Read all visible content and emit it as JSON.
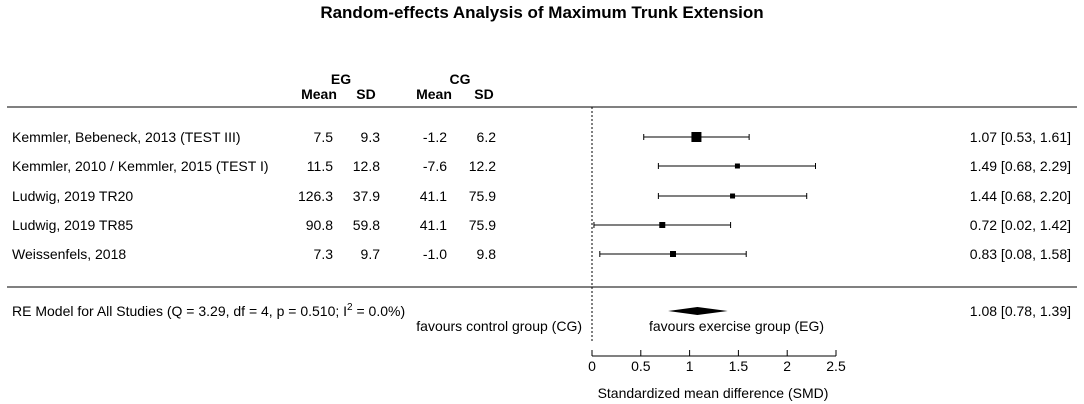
{
  "chart_data": {
    "type": "forest",
    "title": "Random-effects Analysis of Maximum Trunk Extension",
    "columns": {
      "eg_group": "EG",
      "cg_group": "CG",
      "eg_mean": "Mean",
      "eg_sd": "SD",
      "cg_mean": "Mean",
      "cg_sd": "SD"
    },
    "studies": [
      {
        "label": "Kemmler, Bebeneck, 2013 (TEST III)",
        "eg_mean": "7.5",
        "eg_sd": "9.3",
        "cg_mean": "-1.2",
        "cg_sd": "6.2",
        "smd": 1.07,
        "lo": 0.53,
        "hi": 1.61,
        "ci_text": "1.07 [0.53, 1.61]",
        "weight": "large"
      },
      {
        "label": "Kemmler, 2010 / Kemmler, 2015 (TEST I)",
        "eg_mean": "11.5",
        "eg_sd": "12.8",
        "cg_mean": "-7.6",
        "cg_sd": "12.2",
        "smd": 1.49,
        "lo": 0.68,
        "hi": 2.29,
        "ci_text": "1.49 [0.68, 2.29]",
        "weight": "small"
      },
      {
        "label": "Ludwig, 2019 TR20",
        "eg_mean": "126.3",
        "eg_sd": "37.9",
        "cg_mean": "41.1",
        "cg_sd": "75.9",
        "smd": 1.44,
        "lo": 0.68,
        "hi": 2.2,
        "ci_text": "1.44 [0.68, 2.20]",
        "weight": "small"
      },
      {
        "label": "Ludwig, 2019 TR85",
        "eg_mean": "90.8",
        "eg_sd": "59.8",
        "cg_mean": "41.1",
        "cg_sd": "75.9",
        "smd": 0.72,
        "lo": 0.02,
        "hi": 1.42,
        "ci_text": "0.72 [0.02, 1.42]",
        "weight": "medium"
      },
      {
        "label": "Weissenfels, 2018",
        "eg_mean": "7.3",
        "eg_sd": "9.7",
        "cg_mean": "-1.0",
        "cg_sd": "9.8",
        "smd": 0.83,
        "lo": 0.08,
        "hi": 1.58,
        "ci_text": "0.83 [0.08, 1.58]",
        "weight": "medium"
      }
    ],
    "summary": {
      "label_prefix": "RE Model for All Studies (Q = 3.29, df = 4, p = 0.510; I",
      "label_sup": "2",
      "label_suffix": " = 0.0%)",
      "smd": 1.08,
      "lo": 0.78,
      "hi": 1.39,
      "ci_text": "1.08 [0.78, 1.39]"
    },
    "favours_left": "favours control group (CG)",
    "favours_right": "favours exercise group (EG)",
    "xlabel": "Standardized mean difference (SMD)",
    "xlim": [
      0,
      2.5
    ],
    "xticks": [
      0,
      0.5,
      1,
      1.5,
      2,
      2.5
    ],
    "xtick_labels": [
      "0",
      "0.5",
      "1",
      "1.5",
      "2",
      "2.5"
    ],
    "reference_line": 0
  }
}
